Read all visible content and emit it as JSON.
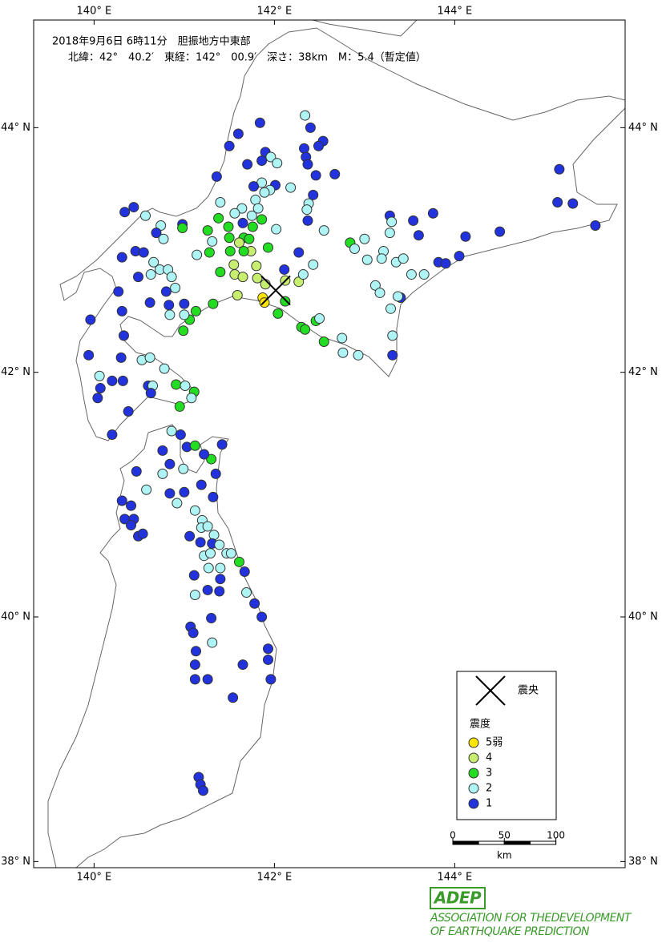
{
  "header": {
    "line1": "2018年9月6日 6時11分　胆振地方中東部",
    "line2": "北緯：42°　40.2′　東経：142°　00.9′　深さ：38km　M：5.4（暫定値）"
  },
  "map": {
    "lon_range": [
      139.33,
      145.89
    ],
    "lat_range": [
      37.95,
      44.88
    ],
    "lon_ticks": [
      {
        "value": 140,
        "label": "140° E"
      },
      {
        "value": 142,
        "label": "142° E"
      },
      {
        "value": 144,
        "label": "144° E"
      }
    ],
    "lat_ticks": [
      {
        "value": 44,
        "label": "44° N"
      },
      {
        "value": 42,
        "label": "42° N"
      },
      {
        "value": 40,
        "label": "40° N"
      },
      {
        "value": 38,
        "label": "38° N"
      }
    ],
    "epicenter": {
      "lon": 142.015,
      "lat": 42.67
    }
  },
  "legend": {
    "epicenter_label": "震央",
    "intensity_title": "震度",
    "levels": [
      {
        "label": "5弱",
        "color": "#ffe600"
      },
      {
        "label": "4",
        "color": "#c8ee70"
      },
      {
        "label": "3",
        "color": "#22dd22"
      },
      {
        "label": "2",
        "color": "#aef4f4"
      },
      {
        "label": "1",
        "color": "#2233dd"
      }
    ]
  },
  "scale": {
    "ticks": [
      0,
      50,
      100
    ],
    "unit": "km"
  },
  "logo": {
    "mark": "ADEP",
    "line1": "ASSOCIATION  FOR THEDEVELOPMENT",
    "line2": "OF EARTHQUAKE PREDICTION"
  },
  "stations": [
    [
      141.84,
      44.04,
      4
    ],
    [
      141.6,
      43.95,
      4
    ],
    [
      141.5,
      43.85,
      4
    ],
    [
      142.34,
      44.1,
      3
    ],
    [
      142.4,
      44.0,
      4
    ],
    [
      142.54,
      43.89,
      4
    ],
    [
      141.9,
      43.8,
      4
    ],
    [
      141.96,
      43.76,
      3
    ],
    [
      142.03,
      43.71,
      3
    ],
    [
      141.86,
      43.73,
      4
    ],
    [
      142.33,
      43.83,
      4
    ],
    [
      142.35,
      43.76,
      4
    ],
    [
      142.49,
      43.85,
      4
    ],
    [
      142.37,
      43.7,
      4
    ],
    [
      142.46,
      43.61,
      4
    ],
    [
      142.67,
      43.62,
      4
    ],
    [
      141.36,
      43.6,
      4
    ],
    [
      141.7,
      43.7,
      4
    ],
    [
      142.01,
      43.53,
      4
    ],
    [
      141.95,
      43.49,
      3
    ],
    [
      141.86,
      43.55,
      3
    ],
    [
      141.89,
      43.47,
      3
    ],
    [
      141.77,
      43.52,
      4
    ],
    [
      142.18,
      43.51,
      3
    ],
    [
      142.43,
      43.45,
      4
    ],
    [
      142.38,
      43.38,
      3
    ],
    [
      142.36,
      43.33,
      3
    ],
    [
      141.4,
      43.39,
      3
    ],
    [
      141.64,
      43.34,
      3
    ],
    [
      141.79,
      43.41,
      3
    ],
    [
      141.82,
      43.34,
      3
    ],
    [
      141.86,
      43.25,
      2
    ],
    [
      141.75,
      43.28,
      3
    ],
    [
      141.56,
      43.3,
      3
    ],
    [
      141.38,
      43.26,
      2
    ],
    [
      141.49,
      43.19,
      2
    ],
    [
      141.65,
      43.22,
      4
    ],
    [
      141.76,
      43.19,
      2
    ],
    [
      142.02,
      43.17,
      3
    ],
    [
      142.37,
      43.24,
      4
    ],
    [
      142.55,
      43.16,
      3
    ],
    [
      140.34,
      43.31,
      4
    ],
    [
      140.44,
      43.35,
      4
    ],
    [
      140.57,
      43.28,
      3
    ],
    [
      140.74,
      43.2,
      3
    ],
    [
      140.98,
      43.21,
      4
    ],
    [
      140.69,
      43.14,
      4
    ],
    [
      140.77,
      43.09,
      3
    ],
    [
      140.98,
      43.18,
      2
    ],
    [
      141.26,
      43.16,
      2
    ],
    [
      141.31,
      43.07,
      3
    ],
    [
      141.5,
      43.1,
      2
    ],
    [
      141.66,
      43.1,
      2
    ],
    [
      141.72,
      43.09,
      2
    ],
    [
      141.61,
      43.06,
      1
    ],
    [
      141.74,
      42.99,
      1
    ],
    [
      141.8,
      42.87,
      1
    ],
    [
      141.66,
      42.99,
      2
    ],
    [
      141.51,
      42.99,
      2
    ],
    [
      141.28,
      42.98,
      2
    ],
    [
      141.14,
      42.96,
      3
    ],
    [
      141.4,
      42.82,
      2
    ],
    [
      141.55,
      42.88,
      1
    ],
    [
      141.56,
      42.8,
      1
    ],
    [
      141.65,
      42.78,
      1
    ],
    [
      141.81,
      42.77,
      1
    ],
    [
      141.9,
      42.72,
      1
    ],
    [
      141.93,
      43.02,
      2
    ],
    [
      142.11,
      42.84,
      4
    ],
    [
      142.27,
      42.98,
      4
    ],
    [
      142.43,
      42.88,
      3
    ],
    [
      142.12,
      42.75,
      1
    ],
    [
      142.27,
      42.74,
      1
    ],
    [
      142.32,
      42.8,
      3
    ],
    [
      141.87,
      42.61,
      0
    ],
    [
      141.89,
      42.57,
      0
    ],
    [
      142.04,
      42.48,
      2
    ],
    [
      142.12,
      42.58,
      2
    ],
    [
      141.59,
      42.63,
      1
    ],
    [
      141.32,
      42.56,
      2
    ],
    [
      141.13,
      42.5,
      2
    ],
    [
      141.06,
      42.43,
      2
    ],
    [
      140.99,
      42.34,
      2
    ],
    [
      141.0,
      42.56,
      4
    ],
    [
      140.83,
      42.55,
      4
    ],
    [
      140.8,
      42.66,
      4
    ],
    [
      140.9,
      42.69,
      3
    ],
    [
      140.73,
      42.84,
      3
    ],
    [
      140.82,
      42.84,
      3
    ],
    [
      140.86,
      42.78,
      3
    ],
    [
      140.63,
      42.8,
      3
    ],
    [
      140.62,
      42.57,
      4
    ],
    [
      140.84,
      42.47,
      3
    ],
    [
      141.0,
      42.47,
      3
    ],
    [
      140.49,
      42.78,
      4
    ],
    [
      140.27,
      42.66,
      4
    ],
    [
      140.31,
      42.5,
      4
    ],
    [
      139.96,
      42.43,
      4
    ],
    [
      140.33,
      42.3,
      4
    ],
    [
      140.46,
      42.99,
      4
    ],
    [
      140.55,
      42.98,
      4
    ],
    [
      140.66,
      42.9,
      3
    ],
    [
      140.31,
      42.94,
      4
    ],
    [
      142.3,
      42.37,
      2
    ],
    [
      142.34,
      42.35,
      2
    ],
    [
      142.46,
      42.42,
      2
    ],
    [
      142.5,
      42.44,
      3
    ],
    [
      142.55,
      42.25,
      2
    ],
    [
      142.75,
      42.28,
      3
    ],
    [
      142.76,
      42.16,
      3
    ],
    [
      142.84,
      43.06,
      2
    ],
    [
      142.89,
      43.01,
      3
    ],
    [
      143.0,
      43.09,
      3
    ],
    [
      143.03,
      42.92,
      3
    ],
    [
      143.21,
      42.99,
      3
    ],
    [
      143.19,
      42.93,
      3
    ],
    [
      143.28,
      43.28,
      4
    ],
    [
      143.3,
      43.23,
      3
    ],
    [
      143.28,
      43.14,
      3
    ],
    [
      143.35,
      42.9,
      3
    ],
    [
      143.43,
      42.93,
      3
    ],
    [
      143.54,
      43.24,
      4
    ],
    [
      143.6,
      43.12,
      4
    ],
    [
      143.76,
      43.3,
      4
    ],
    [
      143.82,
      42.9,
      4
    ],
    [
      143.9,
      42.89,
      4
    ],
    [
      144.05,
      42.95,
      4
    ],
    [
      144.12,
      43.11,
      4
    ],
    [
      144.5,
      43.15,
      4
    ],
    [
      143.66,
      42.8,
      3
    ],
    [
      143.52,
      42.8,
      3
    ],
    [
      143.12,
      42.71,
      3
    ],
    [
      143.17,
      42.65,
      3
    ],
    [
      143.4,
      42.61,
      4
    ],
    [
      143.37,
      42.62,
      3
    ],
    [
      143.29,
      42.52,
      3
    ],
    [
      143.31,
      42.3,
      3
    ],
    [
      143.31,
      42.14,
      4
    ],
    [
      142.93,
      42.14,
      3
    ],
    [
      145.16,
      43.66,
      4
    ],
    [
      145.14,
      43.39,
      4
    ],
    [
      145.31,
      43.38,
      4
    ],
    [
      145.56,
      43.2,
      4
    ],
    [
      139.94,
      42.14,
      4
    ],
    [
      140.3,
      42.12,
      4
    ],
    [
      140.53,
      42.1,
      3
    ],
    [
      140.62,
      42.12,
      3
    ],
    [
      140.78,
      42.03,
      3
    ],
    [
      140.06,
      41.97,
      3
    ],
    [
      140.2,
      41.93,
      4
    ],
    [
      140.32,
      41.93,
      4
    ],
    [
      140.07,
      41.87,
      4
    ],
    [
      140.04,
      41.79,
      4
    ],
    [
      140.6,
      41.89,
      4
    ],
    [
      140.65,
      41.89,
      3
    ],
    [
      140.63,
      41.83,
      4
    ],
    [
      140.91,
      41.9,
      2
    ],
    [
      141.01,
      41.89,
      3
    ],
    [
      141.11,
      41.84,
      2
    ],
    [
      141.08,
      41.79,
      3
    ],
    [
      140.95,
      41.72,
      2
    ],
    [
      140.38,
      41.68,
      4
    ],
    [
      140.2,
      41.49,
      4
    ],
    [
      140.86,
      41.52,
      3
    ],
    [
      140.96,
      41.49,
      4
    ],
    [
      140.76,
      41.36,
      4
    ],
    [
      141.03,
      41.39,
      4
    ],
    [
      141.12,
      41.4,
      2
    ],
    [
      141.42,
      41.41,
      4
    ],
    [
      141.3,
      41.29,
      2
    ],
    [
      141.22,
      41.33,
      4
    ],
    [
      140.84,
      41.25,
      4
    ],
    [
      140.99,
      41.21,
      3
    ],
    [
      140.76,
      41.17,
      3
    ],
    [
      140.47,
      41.19,
      4
    ],
    [
      141.19,
      41.08,
      4
    ],
    [
      141.35,
      41.17,
      4
    ],
    [
      141.32,
      40.98,
      4
    ],
    [
      140.58,
      41.04,
      3
    ],
    [
      140.92,
      40.93,
      3
    ],
    [
      140.84,
      41.01,
      4
    ],
    [
      141.0,
      41.02,
      4
    ],
    [
      140.31,
      40.95,
      4
    ],
    [
      140.41,
      40.91,
      4
    ],
    [
      140.34,
      40.8,
      4
    ],
    [
      140.44,
      40.8,
      4
    ],
    [
      140.41,
      40.75,
      4
    ],
    [
      140.49,
      40.66,
      4
    ],
    [
      140.54,
      40.68,
      4
    ],
    [
      141.12,
      40.87,
      3
    ],
    [
      141.2,
      40.79,
      3
    ],
    [
      141.19,
      40.73,
      3
    ],
    [
      141.26,
      40.74,
      3
    ],
    [
      141.33,
      40.67,
      3
    ],
    [
      141.06,
      40.66,
      4
    ],
    [
      141.18,
      40.61,
      4
    ],
    [
      141.31,
      40.6,
      4
    ],
    [
      141.39,
      40.59,
      3
    ],
    [
      141.22,
      40.5,
      3
    ],
    [
      141.29,
      40.52,
      3
    ],
    [
      141.47,
      40.52,
      3
    ],
    [
      141.52,
      40.52,
      3
    ],
    [
      141.61,
      40.45,
      2
    ],
    [
      141.4,
      40.4,
      3
    ],
    [
      141.27,
      40.4,
      3
    ],
    [
      141.11,
      40.34,
      4
    ],
    [
      141.67,
      40.37,
      4
    ],
    [
      141.4,
      40.31,
      4
    ],
    [
      141.26,
      40.22,
      4
    ],
    [
      141.39,
      40.21,
      4
    ],
    [
      141.69,
      40.2,
      3
    ],
    [
      141.78,
      40.11,
      4
    ],
    [
      141.12,
      40.18,
      3
    ],
    [
      141.86,
      40.0,
      4
    ],
    [
      141.3,
      39.99,
      4
    ],
    [
      141.07,
      39.92,
      4
    ],
    [
      141.1,
      39.87,
      4
    ],
    [
      141.31,
      39.79,
      3
    ],
    [
      141.93,
      39.74,
      4
    ],
    [
      141.13,
      39.72,
      4
    ],
    [
      141.12,
      39.61,
      4
    ],
    [
      141.93,
      39.65,
      4
    ],
    [
      141.65,
      39.61,
      4
    ],
    [
      141.12,
      39.49,
      4
    ],
    [
      141.26,
      39.49,
      4
    ],
    [
      141.96,
      39.49,
      4
    ],
    [
      141.54,
      39.34,
      4
    ],
    [
      141.16,
      38.69,
      4
    ],
    [
      141.18,
      38.63,
      4
    ],
    [
      141.21,
      38.58,
      4
    ]
  ]
}
